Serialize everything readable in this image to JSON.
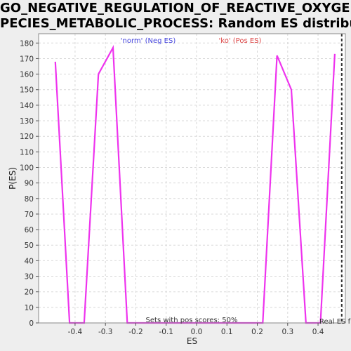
{
  "title_lines": [
    "GO_NEGATIVE_REGULATION_OF_REACTIVE_OXYGEN_S",
    "PECIES_METABOLIC_PROCESS: Random ES distribution"
  ],
  "colors": {
    "series": "#ee33ee",
    "neg_label": "#4444dd",
    "pos_label": "#dd4444",
    "grid": "#d8d8d8",
    "real_es_line": "#333333",
    "plot_bg": "#ffffff",
    "page_bg": "#eeeeee"
  },
  "chart_data": {
    "type": "line",
    "title": "GO_NEGATIVE_REGULATION_OF_REACTIVE_OXYGEN_SPECIES_METABOLIC_PROCESS: Random ES distribution",
    "xlabel": "ES",
    "ylabel": "P(ES)",
    "xlim": [
      -0.52,
      0.49
    ],
    "ylim": [
      0,
      186
    ],
    "x_ticks": [
      -0.4,
      -0.3,
      -0.2,
      -0.1,
      0.0,
      0.1,
      0.2,
      0.3,
      0.4
    ],
    "x_tick_labels": [
      "-0.4",
      "-0.3",
      "-0.2",
      "-0.1",
      "0.0",
      "0.1",
      "0.2",
      "0.3",
      "0.4"
    ],
    "y_ticks": [
      0,
      10,
      20,
      30,
      40,
      50,
      60,
      70,
      80,
      90,
      100,
      110,
      120,
      130,
      140,
      150,
      160,
      170,
      180
    ],
    "y_tick_labels": [
      "0",
      "10",
      "20",
      "30",
      "40",
      "50",
      "60",
      "70",
      "80",
      "90",
      "100",
      "110",
      "120",
      "130",
      "140",
      "150",
      "160",
      "170",
      "180"
    ],
    "grid": true,
    "series": [
      {
        "x": [
          -0.465,
          -0.418,
          -0.37,
          -0.323,
          -0.275,
          -0.228,
          -0.18,
          -0.13,
          -0.08,
          -0.03,
          0.02,
          0.07,
          0.12,
          0.17,
          0.218,
          0.265,
          0.312,
          0.36,
          0.408,
          0.455
        ],
        "values": [
          168,
          0,
          0,
          160,
          177,
          0,
          0,
          0,
          0,
          0,
          0,
          0,
          0,
          0,
          0,
          172,
          150,
          0,
          0,
          173
        ]
      }
    ],
    "real_es": 0.478,
    "annotations": {
      "neg": "'norm' (Neg ES)",
      "pos": "'ko' (Pos ES)",
      "pos_scores": "Sets with pos scores: 50%",
      "real_es": "Real ES f"
    }
  }
}
